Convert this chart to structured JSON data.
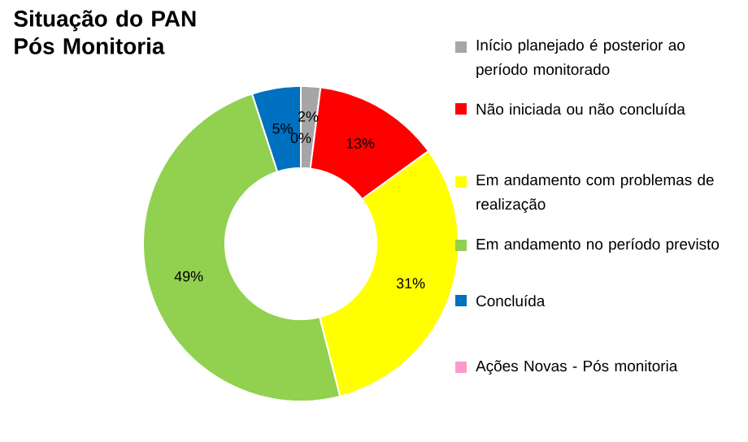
{
  "chart_data": {
    "type": "donut",
    "title": "Situação do PAN\nPós Monitoria",
    "categories": [
      "Início planejado é posterior ao período monitorado",
      "Não iniciada ou não concluída",
      "Em andamento com problemas de realização",
      "Em andamento no período previsto",
      "Concluída",
      "Ações Novas - Pós monitoria"
    ],
    "values": [
      2,
      13,
      31,
      49,
      5,
      0
    ],
    "colors": [
      "#a6a6a6",
      "#ff0000",
      "#ffff00",
      "#92d050",
      "#0070c0",
      "#ff99cc"
    ],
    "value_labels": [
      "2%",
      "13%",
      "31%",
      "49%",
      "5%",
      "0%"
    ],
    "legend": "right"
  }
}
